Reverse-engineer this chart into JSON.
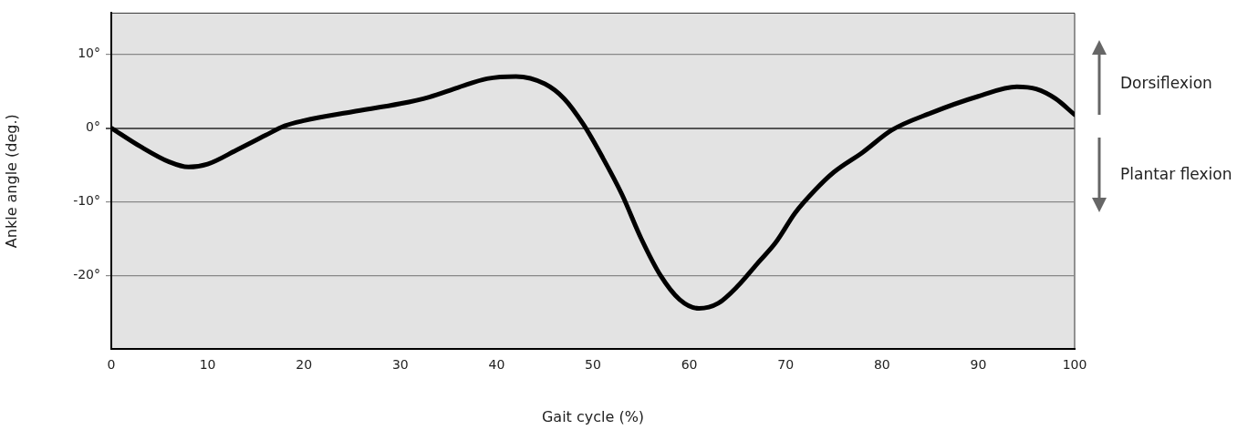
{
  "chart_data": {
    "type": "line",
    "xlabel": "Gait cycle (%)",
    "ylabel": "Ankle angle (deg.)",
    "x": [
      0,
      3,
      6,
      8,
      10,
      13,
      16,
      18,
      20,
      25,
      30,
      33,
      36,
      39,
      42,
      45,
      47,
      49,
      51,
      53,
      55,
      57,
      59,
      61,
      63,
      65,
      67,
      69,
      71,
      73,
      75,
      78,
      81,
      85,
      90,
      94,
      96,
      98,
      100
    ],
    "series": [
      {
        "color": "#000000",
        "values": [
          0,
          -2.5,
          -4.6,
          -5.3,
          -4.9,
          -3,
          -1,
          0.3,
          1,
          2.2,
          3.3,
          4.2,
          5.5,
          6.7,
          7,
          6,
          4,
          0.5,
          -4,
          -9,
          -15,
          -20,
          -23.3,
          -24.5,
          -23.8,
          -21.5,
          -18.5,
          -15.5,
          -11.5,
          -8.5,
          -6,
          -3.3,
          -0.3,
          2,
          4.3,
          5.6,
          5.3,
          4,
          1.8
        ]
      }
    ],
    "xlim": [
      0,
      100
    ],
    "xticks": [
      0,
      10,
      20,
      30,
      40,
      50,
      60,
      70,
      80,
      90,
      100
    ],
    "ylim": [
      -30,
      15.6
    ],
    "yticks": [
      {
        "value": 10,
        "label": "10°"
      },
      {
        "value": 0,
        "label": "0°"
      },
      {
        "value": -10,
        "label": "-10°"
      },
      {
        "value": -20,
        "label": "-20°"
      }
    ],
    "grid": "y",
    "legend": false,
    "marker": "none",
    "line_style": "solid",
    "annotations": [
      "Dorsiflexion",
      "Plantar flexion"
    ]
  }
}
